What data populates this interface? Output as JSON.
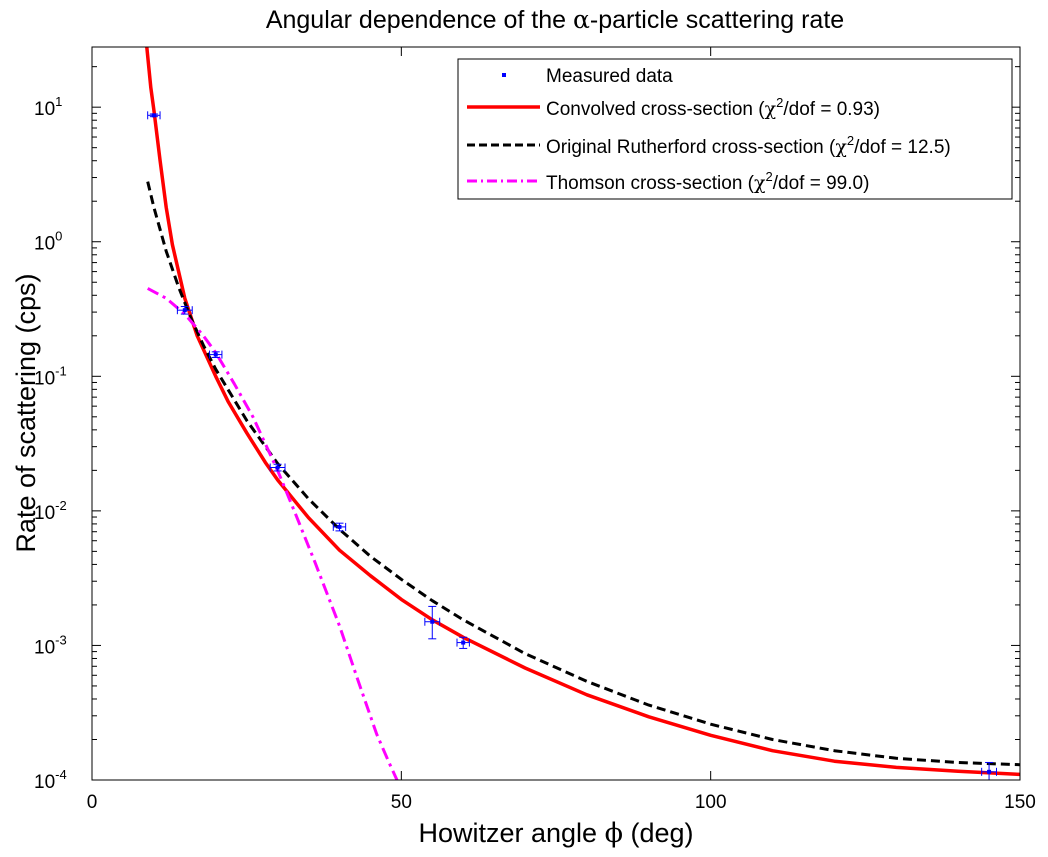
{
  "chart_data": {
    "type": "scatter",
    "title_prefix": "Angular dependence of the ",
    "title_symbol": "α",
    "title_suffix": "-particle scattering rate",
    "xlabel_prefix": "Howitzer angle ",
    "xlabel_symbol": "ϕ",
    "xlabel_suffix": " (deg)",
    "ylabel": "Rate of scattering (cps)",
    "xlim": [
      0,
      150
    ],
    "ylim": [
      0.0001,
      28
    ],
    "yscale": "log",
    "x_ticks": [
      {
        "value": 0,
        "label": "0"
      },
      {
        "value": 50,
        "label": "50"
      },
      {
        "value": 100,
        "label": "100"
      },
      {
        "value": 150,
        "label": "150"
      }
    ],
    "y_ticks": [
      {
        "value": 0.0001,
        "base": "10",
        "exp": "-4"
      },
      {
        "value": 0.001,
        "base": "10",
        "exp": "-3"
      },
      {
        "value": 0.01,
        "base": "10",
        "exp": "-2"
      },
      {
        "value": 0.1,
        "base": "10",
        "exp": "-1"
      },
      {
        "value": 1,
        "base": "10",
        "exp": "0"
      },
      {
        "value": 10,
        "base": "10",
        "exp": "1"
      }
    ],
    "legend_position": "top-right",
    "series": [
      {
        "name": "Measured data",
        "kind": "points",
        "color": "#0000ff",
        "x": [
          10,
          15,
          20,
          30,
          40,
          55,
          60,
          145
        ],
        "y": [
          8.7,
          0.31,
          0.145,
          0.021,
          0.0076,
          0.0015,
          0.00105,
          0.000115
        ],
        "xerr": [
          1,
          1.2,
          1,
          1.2,
          1,
          1.2,
          1,
          1.2
        ],
        "ylow": [
          8.5,
          0.29,
          0.138,
          0.0198,
          0.0071,
          0.00112,
          0.00095,
          0.0001
        ],
        "yhigh": [
          8.9,
          0.33,
          0.152,
          0.0222,
          0.0081,
          0.00195,
          0.00115,
          0.000135
        ]
      },
      {
        "name": "Convolved cross-section",
        "chi_label": "χ",
        "chi_exp": "2",
        "chi_value": "/dof = 0.93",
        "kind": "line",
        "color": "#ff0000",
        "dash": "solid",
        "x": [
          8.8,
          9.5,
          10,
          11,
          12,
          13,
          15,
          17,
          20,
          22,
          25,
          28,
          30,
          33,
          35,
          40,
          45,
          50,
          55,
          60,
          70,
          80,
          90,
          100,
          110,
          120,
          130,
          140,
          150
        ],
        "y": [
          30,
          14,
          9.5,
          4.0,
          1.8,
          0.95,
          0.38,
          0.2,
          0.1,
          0.065,
          0.038,
          0.023,
          0.017,
          0.0115,
          0.0089,
          0.0051,
          0.0033,
          0.0022,
          0.00155,
          0.00115,
          0.00068,
          0.00043,
          0.000295,
          0.000215,
          0.000165,
          0.000138,
          0.000124,
          0.000116,
          0.00011
        ]
      },
      {
        "name": "Original Rutherford cross-section",
        "chi_label": "χ",
        "chi_exp": "2",
        "chi_value": "/dof = 12.5",
        "kind": "line",
        "color": "#000000",
        "dash": "dashed",
        "x": [
          9,
          10,
          12,
          14,
          16,
          18,
          20,
          25,
          30,
          35,
          40,
          45,
          50,
          55,
          60,
          70,
          80,
          90,
          100,
          110,
          120,
          130,
          140,
          150
        ],
        "y": [
          2.8,
          1.8,
          0.85,
          0.46,
          0.27,
          0.17,
          0.113,
          0.047,
          0.0225,
          0.0123,
          0.0073,
          0.0046,
          0.0031,
          0.00215,
          0.00155,
          0.00087,
          0.00054,
          0.00036,
          0.00026,
          0.0002,
          0.000165,
          0.000145,
          0.000135,
          0.00013
        ]
      },
      {
        "name": "Thomson cross-section",
        "chi_label": "χ",
        "chi_exp": "2",
        "chi_value": "/dof = 99.0",
        "kind": "line",
        "color": "#ff00ff",
        "dash": "dashdot",
        "x": [
          9,
          12,
          15,
          18,
          20,
          23,
          26,
          30,
          33,
          36,
          40,
          43,
          46,
          48,
          50
        ],
        "y": [
          0.45,
          0.38,
          0.29,
          0.2,
          0.15,
          0.088,
          0.05,
          0.02,
          0.0092,
          0.0042,
          0.0014,
          0.00055,
          0.00022,
          0.000135,
          8.5e-05
        ]
      }
    ]
  }
}
